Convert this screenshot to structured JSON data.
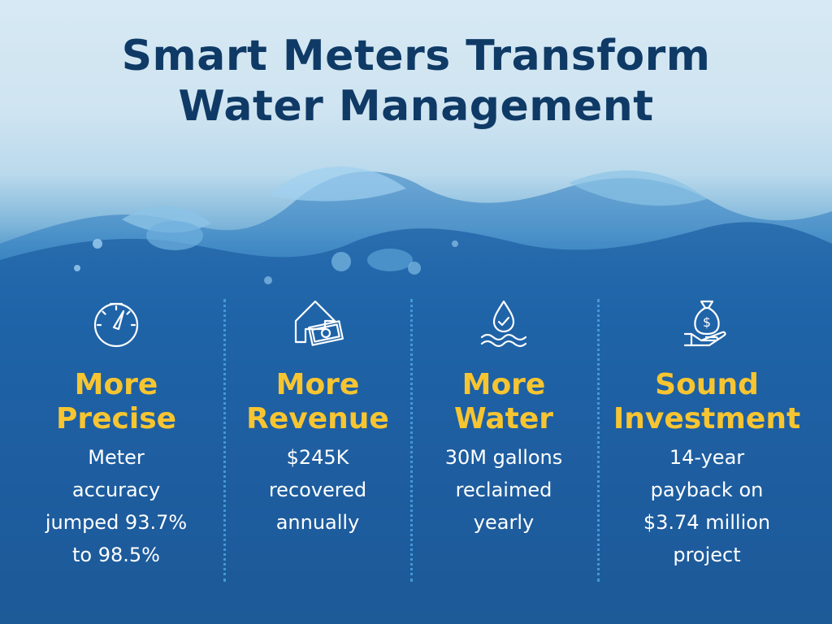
{
  "title": {
    "line1": "Smart Meters Transform",
    "line2": "Water Management"
  },
  "colors": {
    "title": "#0f3a66",
    "heading": "#f7c531",
    "text": "#ffffff",
    "divider": "#4aa3e0"
  },
  "columns": [
    {
      "icon": "gauge-icon",
      "heading": [
        "More",
        "Precise"
      ],
      "desc": [
        "Meter",
        "accuracy",
        "jumped 93.7%",
        "to 98.5%"
      ]
    },
    {
      "icon": "money-up-arrow-icon",
      "heading": [
        "More",
        "Revenue"
      ],
      "desc": [
        "$245K",
        "recovered",
        "annually"
      ]
    },
    {
      "icon": "water-drop-check-icon",
      "heading": [
        "More",
        "Water"
      ],
      "desc": [
        "30M gallons",
        "reclaimed",
        "yearly"
      ]
    },
    {
      "icon": "money-bag-hand-icon",
      "heading": [
        "Sound",
        "Investment"
      ],
      "desc": [
        "14-year",
        "payback on",
        "$3.74 million",
        "project"
      ]
    }
  ]
}
